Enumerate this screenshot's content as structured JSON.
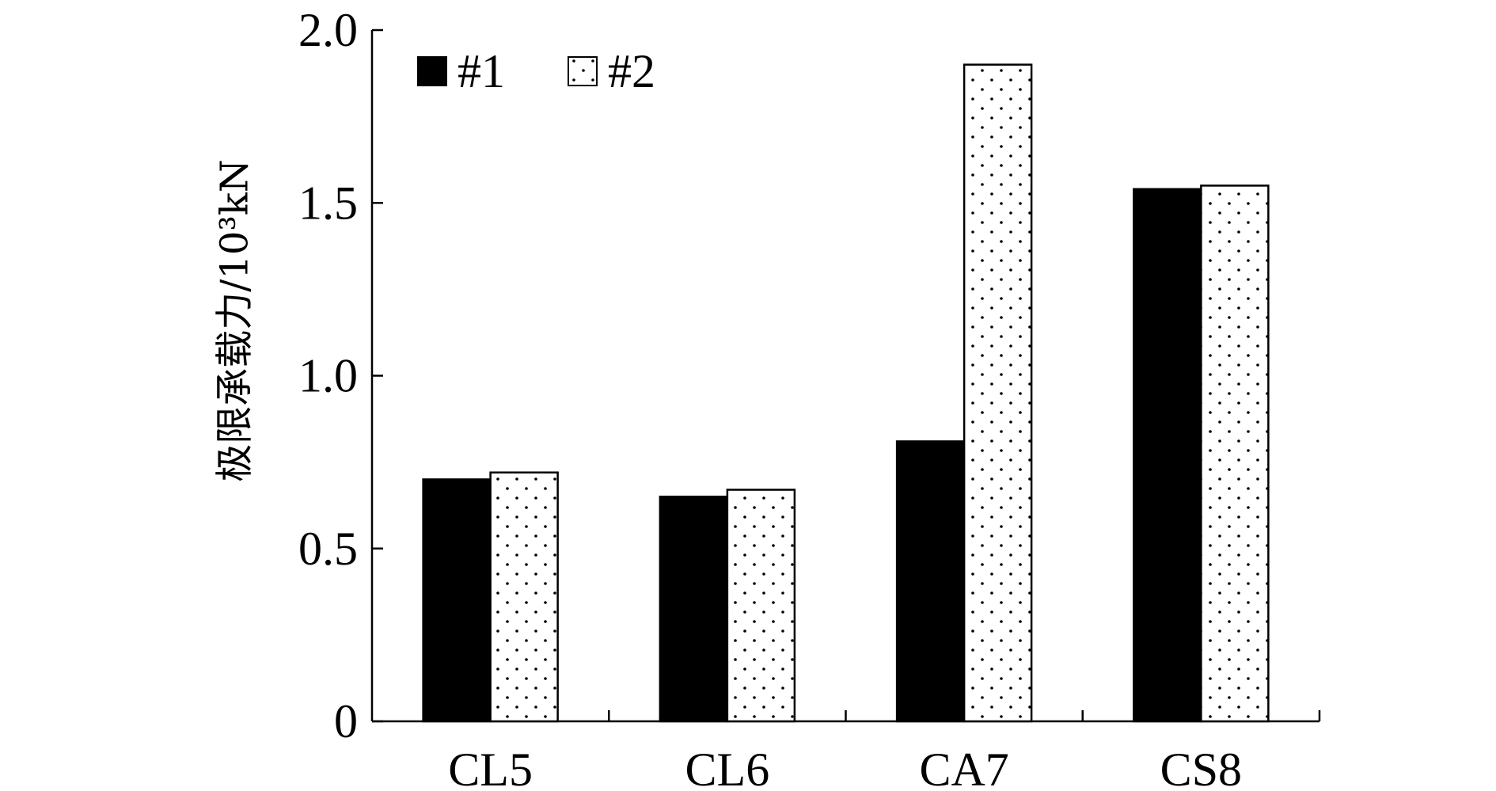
{
  "chart_data": {
    "type": "bar",
    "title": "",
    "xlabel": "",
    "ylabel": "极限承载力/10³kN",
    "categories": [
      "CL5",
      "CL6",
      "CA7",
      "CS8"
    ],
    "series": [
      {
        "name": "#1",
        "pattern": "solid",
        "values": [
          0.7,
          0.65,
          0.81,
          1.54
        ]
      },
      {
        "name": "#2",
        "pattern": "dotted",
        "values": [
          0.72,
          0.67,
          1.9,
          1.55
        ]
      }
    ],
    "yticks": [
      {
        "value": 0,
        "label": "0"
      },
      {
        "value": 0.5,
        "label": "0.5"
      },
      {
        "value": 1.0,
        "label": "1.0"
      },
      {
        "value": 1.5,
        "label": "1.5"
      },
      {
        "value": 2.0,
        "label": "2.0"
      }
    ],
    "ylim": [
      0,
      2.0
    ],
    "grid": false,
    "legend_position": "top-left",
    "colors": {
      "series1_fill": "#000000",
      "series2_fill": "#ffffff",
      "series2_dot": "#000000",
      "axis": "#000000"
    }
  }
}
